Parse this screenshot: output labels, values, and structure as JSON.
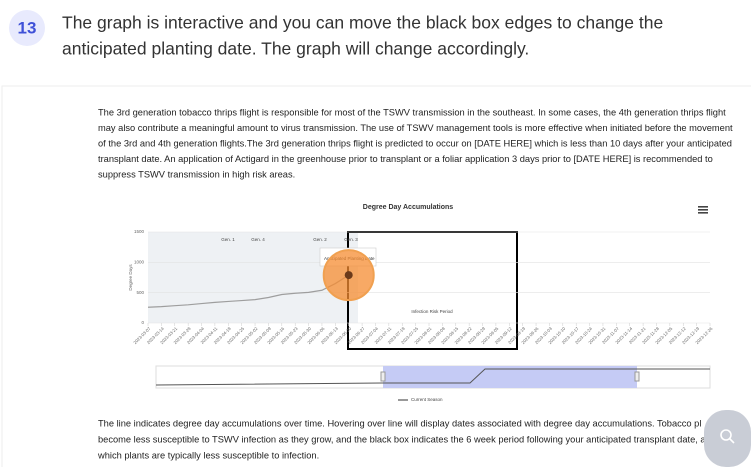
{
  "step": {
    "number": "13",
    "instruction": [
      "The graph is interactive and you can move the black box edges to change the",
      "anticipated planting date. The graph will change accordingly."
    ]
  },
  "intro_lines": [
    "The 3rd generation tobacco thrips flight is responsible for most of the TSWV transmission in the southeast. In some cases, the 4th generation thrips flight",
    "may also contribute a meaningful amount to virus transmission. The use of TSWV management tools is more effective when initiated before the movement",
    "of the 3rd and 4th generation flights.The 3rd generation thrips flight is predicted to occur on [DATE HERE] which is less than 10 days after your anticipated",
    "transplant date. An application of Actigard in the greenhouse prior to transplant or a foliar application 3 days prior to [DATE HERE] is recommended to",
    "suppress TSWV transmission in high risk areas."
  ],
  "chart_data": {
    "type": "line",
    "title": "Degree Day Accumulations",
    "y_label": "Degree Days",
    "ylim": [
      0,
      1500
    ],
    "yticks": [
      0,
      500,
      1000,
      1500
    ],
    "categories": [
      "2023-03-07",
      "2023-03-14",
      "2023-03-21",
      "2023-03-28",
      "2023-04-04",
      "2023-04-11",
      "2023-04-18",
      "2023-04-25",
      "2023-05-02",
      "2023-05-09",
      "2023-05-16",
      "2023-05-23",
      "2023-05-30",
      "2023-06-06",
      "2023-06-13",
      "2023-06-20",
      "2023-06-27",
      "2023-07-04",
      "2023-07-11",
      "2023-07-18",
      "2023-07-25",
      "2023-08-01",
      "2023-08-08",
      "2023-08-15",
      "2023-08-22",
      "2023-08-29",
      "2023-09-05",
      "2023-09-12",
      "2023-09-19",
      "2023-09-26",
      "2023-10-03",
      "2023-10-10",
      "2023-10-17",
      "2023-10-24",
      "2023-10-31",
      "2023-11-07",
      "2023-11-14",
      "2023-11-21",
      "2023-11-28",
      "2023-12-05",
      "2023-12-12",
      "2023-12-19",
      "2023-12-26"
    ],
    "series": [
      {
        "name": "Current Season",
        "color": "#9e9e9e",
        "values": [
          260,
          270,
          285,
          300,
          320,
          340,
          355,
          370,
          385,
          420,
          470,
          490,
          505,
          540,
          650,
          790,
          null,
          null,
          null,
          null,
          null,
          null,
          null,
          null,
          null,
          null,
          null,
          null,
          null,
          null,
          null,
          null,
          null,
          null,
          null,
          null,
          null,
          null,
          null,
          null,
          null,
          null,
          null
        ]
      }
    ],
    "annotations": [
      "Gen. 1",
      "Gen. 4",
      "Gen. 2",
      "Gen. 3",
      "Infection Risk Period",
      "Anticipated Planting Date"
    ],
    "legend": "bottom"
  },
  "outro_lines": [
    "The line indicates degree day accumulations over time. Hovering over line will display dates associated with degree day accumulations. Tobacco pl",
    "become less susceptible to TSWV infection as they grow, and the black box indicates the 6 week period following your anticipated transplant date, a",
    "which plants are typically less susceptible to infection."
  ]
}
